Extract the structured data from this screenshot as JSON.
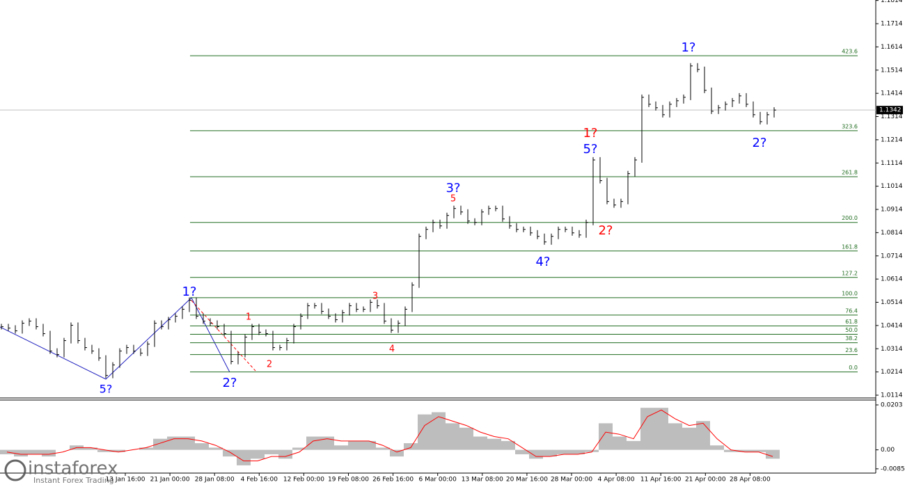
{
  "chart_data": [
    {
      "type": "line",
      "color": "#000000",
      "ylim": [
        1.0102,
        1.1816
      ],
      "yticks": [
        1.0114,
        1.0214,
        1.0314,
        1.0414,
        1.0514,
        1.0614,
        1.0714,
        1.0814,
        1.0914,
        1.1014,
        1.1114,
        1.1214,
        1.1314,
        1.1414,
        1.1514,
        1.1614,
        1.1714,
        1.1814
      ],
      "values": [
        1.0409,
        1.0403,
        1.0391,
        1.0424,
        1.0433,
        1.0409,
        1.0379,
        1.0304,
        1.0289,
        1.0349,
        1.0415,
        1.0349,
        1.0319,
        1.0304,
        1.0274,
        1.0199,
        1.0244,
        1.0304,
        1.0319,
        1.0304,
        1.0295,
        1.0334,
        1.0424,
        1.0409,
        1.0439,
        1.0454,
        1.0484,
        1.0523,
        1.0454,
        1.0433,
        1.0424,
        1.0409,
        1.0379,
        1.0259,
        1.0289,
        1.0364,
        1.0409,
        1.0385,
        1.0379,
        1.0319,
        1.0319,
        1.0349,
        1.0409,
        1.0454,
        1.0499,
        1.0499,
        1.0475,
        1.0454,
        1.0439,
        1.0469,
        1.0499,
        1.0484,
        1.0484,
        1.0514,
        1.0499,
        1.0433,
        1.0394,
        1.0424,
        1.0484,
        1.0588,
        1.0798,
        1.0828,
        1.0858,
        1.0843,
        1.0888,
        1.0918,
        1.0903,
        1.0864,
        1.0858,
        1.0903,
        1.0918,
        1.0918,
        1.0873,
        1.0843,
        1.0828,
        1.0828,
        1.0813,
        1.0798,
        1.0774,
        1.0798,
        1.0828,
        1.0828,
        1.0813,
        1.0804,
        1.0858,
        1.1127,
        1.1038,
        1.0948,
        1.0933,
        1.0948,
        1.1068,
        1.1127,
        1.1397,
        1.1367,
        1.1352,
        1.1322,
        1.1367,
        1.1382,
        1.1397,
        1.1532,
        1.1517,
        1.1427,
        1.1337,
        1.1352,
        1.1367,
        1.1382,
        1.1403,
        1.1367,
        1.1322,
        1.1292,
        1.1322,
        1.1342
      ],
      "last_price": 1.1342,
      "fib_color": "#1f6b1f",
      "fib_levels": [
        {
          "price": 1.1576,
          "label": "423.6"
        },
        {
          "price": 1.1253,
          "label": "323.6"
        },
        {
          "price": 1.1055,
          "label": "261.8"
        },
        {
          "price": 1.0858,
          "label": "200.0"
        },
        {
          "price": 1.0735,
          "label": "161.8"
        },
        {
          "price": 1.0621,
          "label": "127.2"
        },
        {
          "price": 1.0534,
          "label": "100.0"
        },
        {
          "price": 1.0459,
          "label": "76.4"
        },
        {
          "price": 1.0412,
          "label": "61.8"
        },
        {
          "price": 1.0376,
          "label": "50.0"
        },
        {
          "price": 1.034,
          "label": "38.2"
        },
        {
          "price": 1.0289,
          "label": "23.6"
        },
        {
          "price": 1.0214,
          "label": "0.0"
        }
      ],
      "annotations": [
        {
          "text": "5?",
          "color": "#0000ff"
        },
        {
          "text": "1?",
          "color": "#0000ff"
        },
        {
          "text": "2?",
          "color": "#0000ff"
        },
        {
          "text": "1",
          "color": "#ff0000"
        },
        {
          "text": "2",
          "color": "#ff0000"
        },
        {
          "text": "3",
          "color": "#ff0000"
        },
        {
          "text": "4",
          "color": "#ff0000"
        },
        {
          "text": "5",
          "color": "#ff0000"
        },
        {
          "text": "3?",
          "color": "#0000ff"
        },
        {
          "text": "4?",
          "color": "#0000ff"
        },
        {
          "text": "1?",
          "color": "#ff0000"
        },
        {
          "text": "5?",
          "color": "#0000ff"
        },
        {
          "text": "2?",
          "color": "#ff0000"
        },
        {
          "text": "1?",
          "color": "#0000ff"
        },
        {
          "text": "2?",
          "color": "#0000ff"
        }
      ],
      "time_axis_labels": [
        "13 Jan 16:00",
        "21 Jan 00:00",
        "28 Jan 08:00",
        "4 Feb 16:00",
        "12 Feb 00:00",
        "19 Feb 08:00",
        "26 Feb 16:00",
        "6 Mar 00:00",
        "13 Mar 08:00",
        "20 Mar 16:00",
        "28 Mar 00:00",
        "4 Apr 08:00",
        "11 Apr 16:00",
        "21 Apr 00:00",
        "28 Apr 08:00"
      ]
    },
    {
      "type": "bar",
      "color": "#bdbdbd",
      "signal_color": "#ff0000",
      "ylim": [
        -0.0105,
        0.0225
      ],
      "yticks": [
        -0.00857,
        {
          "value": 0,
          "label": "0.00"
        },
        0.0203
      ],
      "values": [
        -0.002,
        -0.003,
        -0.002,
        -0.003,
        0.0,
        0.002,
        0.001,
        -0.001,
        -0.001,
        0.0,
        0.001,
        0.005,
        0.006,
        0.006,
        0.003,
        0.001,
        -0.003,
        -0.007,
        -0.004,
        -0.002,
        -0.004,
        0.001,
        0.006,
        0.006,
        0.002,
        0.004,
        0.004,
        0.001,
        -0.003,
        0.003,
        0.016,
        0.017,
        0.012,
        0.01,
        0.006,
        0.005,
        0.004,
        -0.002,
        -0.004,
        -0.003,
        -0.002,
        -0.002,
        -0.001,
        0.012,
        0.006,
        0.004,
        0.019,
        0.019,
        0.012,
        0.01,
        0.013,
        0.002,
        -0.001,
        -0.001,
        -0.001,
        -0.004
      ],
      "signal": [
        -0.001,
        -0.002,
        -0.002,
        -0.002,
        -0.001,
        0.001,
        0.001,
        0.0,
        -0.001,
        0.0,
        0.001,
        0.003,
        0.005,
        0.005,
        0.004,
        0.002,
        -0.001,
        -0.005,
        -0.005,
        -0.003,
        -0.003,
        -0.001,
        0.004,
        0.005,
        0.004,
        0.004,
        0.004,
        0.002,
        -0.001,
        0.001,
        0.011,
        0.015,
        0.013,
        0.011,
        0.008,
        0.006,
        0.005,
        0.001,
        -0.003,
        -0.003,
        -0.002,
        -0.002,
        -0.001,
        0.008,
        0.007,
        0.005,
        0.015,
        0.018,
        0.014,
        0.011,
        0.012,
        0.005,
        0.0,
        -0.001,
        -0.001,
        -0.003
      ]
    }
  ],
  "watermark": {
    "brand": "instaforex",
    "tagline": "Instant Forex Trading"
  }
}
